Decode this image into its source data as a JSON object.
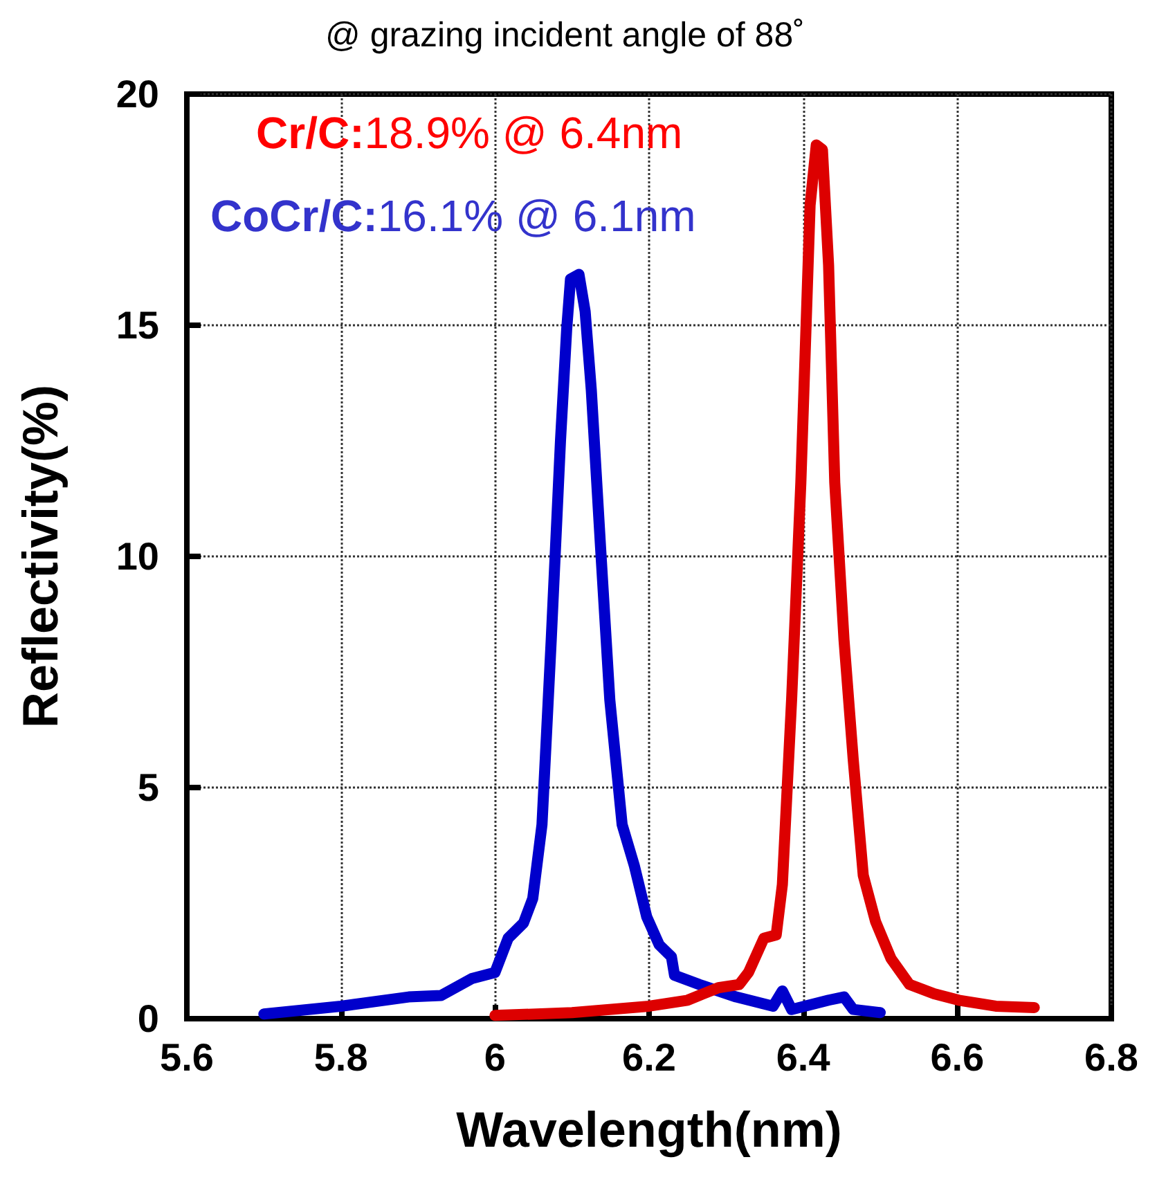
{
  "chart_data": {
    "type": "line",
    "title": "@ grazing incident angle of 88˚",
    "xlabel": "Wavelength(nm)",
    "ylabel": "Reflectivity(%)",
    "annotations": [
      "Cr/C:18.9% @ 6.4nm",
      "CoCr/C:16.1% @ 6.1nm"
    ],
    "xlim": [
      5.6,
      6.8
    ],
    "xticks": [
      5.6,
      5.8,
      6,
      6.2,
      6.4,
      6.6,
      6.8
    ],
    "ylim": [
      0,
      20
    ],
    "yticks": [
      0,
      5,
      10,
      15,
      20
    ],
    "grid": true,
    "marker": "none",
    "line_style": "solid",
    "series": [
      {
        "color": "#dd0000",
        "x": [
          6.0,
          6.1,
          6.2,
          6.25,
          6.29,
          6.317,
          6.329,
          6.349,
          6.365,
          6.373,
          6.385,
          6.397,
          6.409,
          6.417,
          6.425,
          6.433,
          6.441,
          6.453,
          6.465,
          6.478,
          6.494,
          6.514,
          6.538,
          6.57,
          6.602,
          6.65,
          6.7
        ],
        "values": [
          0.07,
          0.13,
          0.27,
          0.4,
          0.67,
          0.74,
          1.0,
          1.74,
          1.81,
          2.9,
          6.9,
          11.6,
          17.6,
          18.9,
          18.8,
          16.3,
          11.6,
          8.2,
          5.6,
          3.1,
          2.1,
          1.3,
          0.74,
          0.54,
          0.4,
          0.27,
          0.24
        ]
      },
      {
        "color": "#0000cc",
        "x": [
          5.7,
          5.8,
          5.888,
          5.93,
          5.97,
          6.0,
          6.017,
          6.037,
          6.049,
          6.061,
          6.073,
          6.085,
          6.093,
          6.098,
          6.109,
          6.117,
          6.125,
          6.137,
          6.149,
          6.165,
          6.181,
          6.197,
          6.213,
          6.229,
          6.233,
          6.265,
          6.313,
          6.361,
          6.373,
          6.385,
          6.433,
          6.453,
          6.465,
          6.5
        ],
        "values": [
          0.1,
          0.27,
          0.47,
          0.5,
          0.87,
          1.0,
          1.74,
          2.07,
          2.6,
          4.2,
          8.2,
          12.5,
          14.9,
          16.0,
          16.1,
          15.3,
          13.6,
          10.2,
          6.9,
          4.2,
          3.3,
          2.2,
          1.6,
          1.34,
          0.94,
          0.74,
          0.47,
          0.27,
          0.6,
          0.2,
          0.4,
          0.47,
          0.2,
          0.13
        ]
      }
    ]
  }
}
